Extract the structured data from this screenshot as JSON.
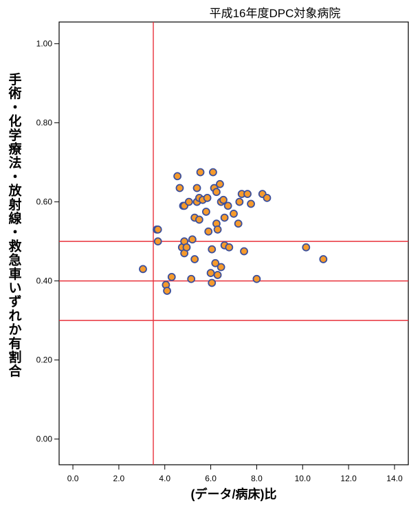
{
  "chart_data": {
    "type": "scatter",
    "title": "平成16年度DPC対象病院",
    "xlabel": "(データ/病床)比",
    "ylabel": "手術・化学療法・放射線・救急車いずれか有割合",
    "xlim": [
      -0.6,
      14.6
    ],
    "ylim": [
      -0.065,
      1.055
    ],
    "x_ticks": [
      "0.0",
      "2.0",
      "4.0",
      "6.0",
      "8.0",
      "10.0",
      "12.0",
      "14.0"
    ],
    "y_ticks": [
      "0.00",
      "0.20",
      "0.40",
      "0.60",
      "0.80",
      "1.00"
    ],
    "reference_lines": {
      "vertical_x": [
        3.5
      ],
      "horizontal_y": [
        0.3,
        0.4,
        0.5
      ]
    },
    "colors": {
      "marker_fill": "#f59a2c",
      "marker_edge": "#3b4f9c",
      "reference_line": "#e8303a"
    },
    "points": [
      {
        "x": 3.05,
        "y": 0.43
      },
      {
        "x": 3.65,
        "y": 0.53
      },
      {
        "x": 3.7,
        "y": 0.53
      },
      {
        "x": 3.7,
        "y": 0.5
      },
      {
        "x": 4.05,
        "y": 0.39
      },
      {
        "x": 4.1,
        "y": 0.375
      },
      {
        "x": 4.3,
        "y": 0.41
      },
      {
        "x": 4.55,
        "y": 0.665
      },
      {
        "x": 4.65,
        "y": 0.635
      },
      {
        "x": 4.8,
        "y": 0.59
      },
      {
        "x": 4.85,
        "y": 0.59
      },
      {
        "x": 4.75,
        "y": 0.485
      },
      {
        "x": 4.85,
        "y": 0.5
      },
      {
        "x": 4.85,
        "y": 0.47
      },
      {
        "x": 4.95,
        "y": 0.485
      },
      {
        "x": 5.05,
        "y": 0.6
      },
      {
        "x": 5.15,
        "y": 0.405
      },
      {
        "x": 5.2,
        "y": 0.505
      },
      {
        "x": 5.3,
        "y": 0.56
      },
      {
        "x": 5.3,
        "y": 0.455
      },
      {
        "x": 5.4,
        "y": 0.635
      },
      {
        "x": 5.4,
        "y": 0.6
      },
      {
        "x": 5.5,
        "y": 0.61
      },
      {
        "x": 5.5,
        "y": 0.555
      },
      {
        "x": 5.55,
        "y": 0.675
      },
      {
        "x": 5.65,
        "y": 0.605
      },
      {
        "x": 5.8,
        "y": 0.575
      },
      {
        "x": 5.85,
        "y": 0.61
      },
      {
        "x": 5.9,
        "y": 0.525
      },
      {
        "x": 6.0,
        "y": 0.42
      },
      {
        "x": 6.05,
        "y": 0.48
      },
      {
        "x": 6.05,
        "y": 0.395
      },
      {
        "x": 6.1,
        "y": 0.675
      },
      {
        "x": 6.15,
        "y": 0.635
      },
      {
        "x": 6.2,
        "y": 0.445
      },
      {
        "x": 6.25,
        "y": 0.625
      },
      {
        "x": 6.25,
        "y": 0.545
      },
      {
        "x": 6.3,
        "y": 0.53
      },
      {
        "x": 6.3,
        "y": 0.415
      },
      {
        "x": 6.4,
        "y": 0.645
      },
      {
        "x": 6.45,
        "y": 0.6
      },
      {
        "x": 6.45,
        "y": 0.435
      },
      {
        "x": 6.55,
        "y": 0.605
      },
      {
        "x": 6.6,
        "y": 0.56
      },
      {
        "x": 6.6,
        "y": 0.49
      },
      {
        "x": 6.75,
        "y": 0.59
      },
      {
        "x": 6.8,
        "y": 0.485
      },
      {
        "x": 7.0,
        "y": 0.57
      },
      {
        "x": 7.2,
        "y": 0.545
      },
      {
        "x": 7.25,
        "y": 0.6
      },
      {
        "x": 7.35,
        "y": 0.62
      },
      {
        "x": 7.45,
        "y": 0.475
      },
      {
        "x": 7.6,
        "y": 0.62
      },
      {
        "x": 7.75,
        "y": 0.595
      },
      {
        "x": 8.0,
        "y": 0.405
      },
      {
        "x": 8.25,
        "y": 0.62
      },
      {
        "x": 8.45,
        "y": 0.61
      },
      {
        "x": 10.15,
        "y": 0.485
      },
      {
        "x": 10.9,
        "y": 0.455
      }
    ]
  }
}
